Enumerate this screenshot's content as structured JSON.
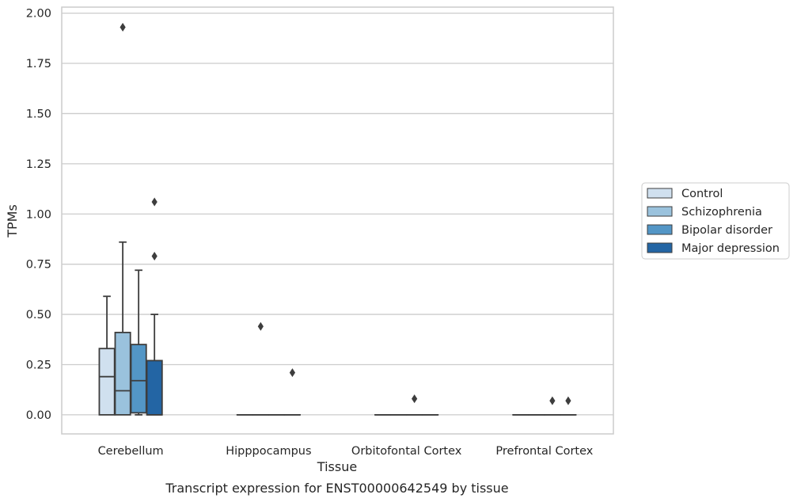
{
  "chart_data": {
    "type": "box",
    "title": "Transcript expression for ENST00000642549 by tissue",
    "xlabel": "Tissue",
    "ylabel": "TPMs",
    "ylim": [
      -0.095,
      2.03
    ],
    "yticks": [
      "0.00",
      "0.25",
      "0.50",
      "0.75",
      "1.00",
      "1.25",
      "1.50",
      "1.75",
      "2.00"
    ],
    "ytick_values": [
      0,
      0.25,
      0.5,
      0.75,
      1.0,
      1.25,
      1.5,
      1.75,
      2.0
    ],
    "categories": [
      "Cerebellum",
      "Hipppocampus",
      "Orbitofontal Cortex",
      "Prefrontal Cortex"
    ],
    "grid": "horizontal",
    "legend_position": "right",
    "series": [
      {
        "name": "Control",
        "color": "#d0e0ef",
        "boxes": [
          {
            "q1": 0.0,
            "median": 0.19,
            "q3": 0.33,
            "whisker_low": 0.0,
            "whisker_high": 0.59,
            "outliers": []
          },
          {
            "q1": 0.0,
            "median": 0.0,
            "q3": 0.0,
            "whisker_low": 0.0,
            "whisker_high": 0.0,
            "outliers": []
          },
          {
            "q1": 0.0,
            "median": 0.0,
            "q3": 0.0,
            "whisker_low": 0.0,
            "whisker_high": 0.0,
            "outliers": []
          },
          {
            "q1": 0.0,
            "median": 0.0,
            "q3": 0.0,
            "whisker_low": 0.0,
            "whisker_high": 0.0,
            "outliers": []
          }
        ]
      },
      {
        "name": "Schizophrenia",
        "color": "#9ac2dd",
        "boxes": [
          {
            "q1": 0.0,
            "median": 0.12,
            "q3": 0.41,
            "whisker_low": 0.0,
            "whisker_high": 0.86,
            "outliers": [
              1.93
            ]
          },
          {
            "q1": 0.0,
            "median": 0.0,
            "q3": 0.0,
            "whisker_low": 0.0,
            "whisker_high": 0.0,
            "outliers": [
              0.44
            ]
          },
          {
            "q1": 0.0,
            "median": 0.0,
            "q3": 0.0,
            "whisker_low": 0.0,
            "whisker_high": 0.0,
            "outliers": []
          },
          {
            "q1": 0.0,
            "median": 0.0,
            "q3": 0.0,
            "whisker_low": 0.0,
            "whisker_high": 0.0,
            "outliers": []
          }
        ]
      },
      {
        "name": "Bipolar disorder",
        "color": "#5396c6",
        "boxes": [
          {
            "q1": 0.01,
            "median": 0.17,
            "q3": 0.35,
            "whisker_low": 0.0,
            "whisker_high": 0.72,
            "outliers": []
          },
          {
            "q1": 0.0,
            "median": 0.0,
            "q3": 0.0,
            "whisker_low": 0.0,
            "whisker_high": 0.0,
            "outliers": []
          },
          {
            "q1": 0.0,
            "median": 0.0,
            "q3": 0.0,
            "whisker_low": 0.0,
            "whisker_high": 0.0,
            "outliers": [
              0.08
            ]
          },
          {
            "q1": 0.0,
            "median": 0.0,
            "q3": 0.0,
            "whisker_low": 0.0,
            "whisker_high": 0.0,
            "outliers": [
              0.07
            ]
          }
        ]
      },
      {
        "name": "Major depression",
        "color": "#2365a4",
        "boxes": [
          {
            "q1": 0.0,
            "median": 0.0,
            "q3": 0.27,
            "whisker_low": 0.0,
            "whisker_high": 0.5,
            "outliers": [
              0.79,
              1.06
            ]
          },
          {
            "q1": 0.0,
            "median": 0.0,
            "q3": 0.0,
            "whisker_low": 0.0,
            "whisker_high": 0.0,
            "outliers": [
              0.21
            ]
          },
          {
            "q1": 0.0,
            "median": 0.0,
            "q3": 0.0,
            "whisker_low": 0.0,
            "whisker_high": 0.0,
            "outliers": []
          },
          {
            "q1": 0.0,
            "median": 0.0,
            "q3": 0.0,
            "whisker_low": 0.0,
            "whisker_high": 0.0,
            "outliers": [
              0.07
            ]
          }
        ]
      }
    ]
  }
}
